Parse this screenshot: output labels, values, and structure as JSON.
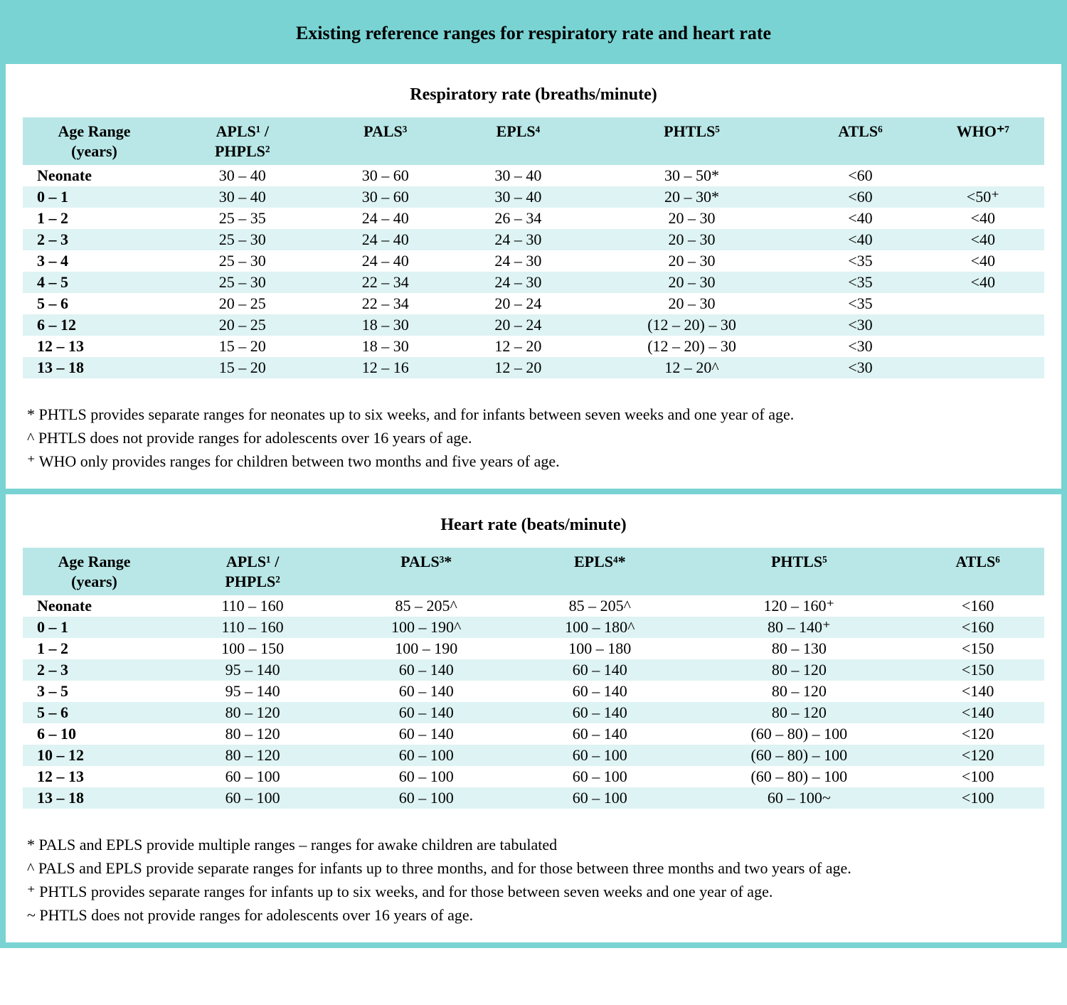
{
  "colors": {
    "band": "#79d3d3",
    "header_row": "#b9e7e7",
    "row_even": "#ffffff",
    "row_odd": "#def3f3",
    "text": "#000000"
  },
  "typography": {
    "family": "Times New Roman",
    "title_size_pt": 20,
    "section_title_size_pt": 18,
    "body_size_pt": 16
  },
  "page_title": "Existing reference ranges for respiratory rate and heart rate",
  "respiratory": {
    "title": "Respiratory rate (breaths/minute)",
    "columns": {
      "c0": "Age Range\n(years)",
      "c1": "APLS¹ /\nPHPLS²",
      "c2": "PALS³",
      "c3": "EPLS⁴",
      "c4": "PHTLS⁵",
      "c5": "ATLS⁶",
      "c6": "WHO⁺⁷"
    },
    "rows": [
      {
        "age": "Neonate",
        "c1": "30 – 40",
        "c2": "30 – 60",
        "c3": "30 – 40",
        "c4": "30 – 50*",
        "c5": "<60",
        "c6": ""
      },
      {
        "age": "0 – 1",
        "c1": "30 – 40",
        "c2": "30 – 60",
        "c3": "30 – 40",
        "c4": "20 – 30*",
        "c5": "<60",
        "c6": "<50⁺"
      },
      {
        "age": "1 – 2",
        "c1": "25 – 35",
        "c2": "24 – 40",
        "c3": "26 – 34",
        "c4": "20 – 30",
        "c5": "<40",
        "c6": "<40"
      },
      {
        "age": "2 – 3",
        "c1": "25 – 30",
        "c2": "24 – 40",
        "c3": "24 – 30",
        "c4": "20 – 30",
        "c5": "<40",
        "c6": "<40"
      },
      {
        "age": "3 – 4",
        "c1": "25 – 30",
        "c2": "24 – 40",
        "c3": "24 – 30",
        "c4": "20 – 30",
        "c5": "<35",
        "c6": "<40"
      },
      {
        "age": "4 – 5",
        "c1": "25 – 30",
        "c2": "22 – 34",
        "c3": "24 – 30",
        "c4": "20 – 30",
        "c5": "<35",
        "c6": "<40"
      },
      {
        "age": "5 – 6",
        "c1": "20 – 25",
        "c2": "22 – 34",
        "c3": "20 – 24",
        "c4": "20 – 30",
        "c5": "<35",
        "c6": ""
      },
      {
        "age": "6 – 12",
        "c1": "20 – 25",
        "c2": "18 – 30",
        "c3": "20 – 24",
        "c4": "(12 – 20) – 30",
        "c5": "<30",
        "c6": ""
      },
      {
        "age": "12 – 13",
        "c1": "15 – 20",
        "c2": "18 – 30",
        "c3": "12 – 20",
        "c4": "(12 – 20) – 30",
        "c5": "<30",
        "c6": ""
      },
      {
        "age": "13 – 18",
        "c1": "15 – 20",
        "c2": "12 – 16",
        "c3": "12 – 20",
        "c4": "12 – 20^",
        "c5": "<30",
        "c6": ""
      }
    ],
    "col_widths_pct": [
      14,
      15,
      13,
      13,
      21,
      12,
      12
    ],
    "notes": [
      "* PHTLS provides separate ranges for neonates up to six weeks, and for infants between seven weeks and one year of age.",
      "^ PHTLS does not provide ranges for adolescents over 16 years of age.",
      "⁺ WHO only provides ranges for children between two months and five years of age."
    ]
  },
  "heart": {
    "title": "Heart rate (beats/minute)",
    "columns": {
      "c0": "Age Range\n(years)",
      "c1": "APLS¹ /\nPHPLS²",
      "c2": "PALS³*",
      "c3": "EPLS⁴*",
      "c4": "PHTLS⁵",
      "c5": "ATLS⁶"
    },
    "rows": [
      {
        "age": "Neonate",
        "c1": "110 – 160",
        "c2": "85 – 205^",
        "c3": "85 – 205^",
        "c4": "120 – 160⁺",
        "c5": "<160"
      },
      {
        "age": "0 – 1",
        "c1": "110 – 160",
        "c2": "100 – 190^",
        "c3": "100 – 180^",
        "c4": "80 – 140⁺",
        "c5": "<160"
      },
      {
        "age": "1 – 2",
        "c1": "100 – 150",
        "c2": "100 – 190",
        "c3": "100 – 180",
        "c4": "80 – 130",
        "c5": "<150"
      },
      {
        "age": "2 – 3",
        "c1": "95 – 140",
        "c2": "60 – 140",
        "c3": "60 – 140",
        "c4": "80 – 120",
        "c5": "<150"
      },
      {
        "age": "3 – 5",
        "c1": "95 – 140",
        "c2": "60 – 140",
        "c3": "60 – 140",
        "c4": "80 – 120",
        "c5": "<140"
      },
      {
        "age": "5 – 6",
        "c1": "80 – 120",
        "c2": "60 – 140",
        "c3": "60 – 140",
        "c4": "80 – 120",
        "c5": "<140"
      },
      {
        "age": "6 – 10",
        "c1": "80 – 120",
        "c2": "60 – 140",
        "c3": "60 – 140",
        "c4": "(60 – 80) – 100",
        "c5": "<120"
      },
      {
        "age": "10 – 12",
        "c1": "80 – 120",
        "c2": "60 – 100",
        "c3": "60 – 100",
        "c4": "(60 – 80) – 100",
        "c5": "<120"
      },
      {
        "age": "12 – 13",
        "c1": "60 – 100",
        "c2": "60 – 100",
        "c3": "60 – 100",
        "c4": "(60 – 80) – 100",
        "c5": "<100"
      },
      {
        "age": "13 – 18",
        "c1": "60 – 100",
        "c2": "60 – 100",
        "c3": "60 – 100",
        "c4": "60 – 100~",
        "c5": "<100"
      }
    ],
    "col_widths_pct": [
      14,
      17,
      17,
      17,
      22,
      13
    ],
    "notes": [
      "* PALS and EPLS provide multiple ranges – ranges for awake children are tabulated",
      "^ PALS and EPLS provide separate ranges for infants up to three months, and for those between three months and two years of age.",
      "⁺ PHTLS provides separate ranges for infants up to six weeks, and for those between seven weeks and one year of age.",
      "~ PHTLS does not provide ranges for adolescents over 16 years of age."
    ]
  }
}
